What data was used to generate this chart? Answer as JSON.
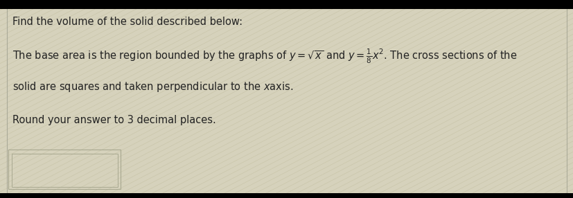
{
  "background_color": "#d6d2bc",
  "text_color": "#222222",
  "title_line": "Find the volume of the solid described below:",
  "body_line1": "The base area is the region bounded by the graphs of $y = \\sqrt{x}$ and $y = \\frac{1}{8}x^2$. The cross sections of the",
  "body_line2": "solid are squares and taken perpendicular to the $x$axis.",
  "body_line3": "Round your answer to 3 decimal places.",
  "font_size_title": 10.5,
  "font_size_body": 10.5,
  "stripe_color_dark": "#c0bc9c",
  "stripe_color_light": "#d8d4be",
  "border_color": "#a0a090",
  "box_outer_color": "#a8a890",
  "box_inner_color": "#cac6b0",
  "fig_width": 8.28,
  "fig_height": 2.86,
  "black_bar_color": "#000000",
  "black_bar_height": 0.07
}
